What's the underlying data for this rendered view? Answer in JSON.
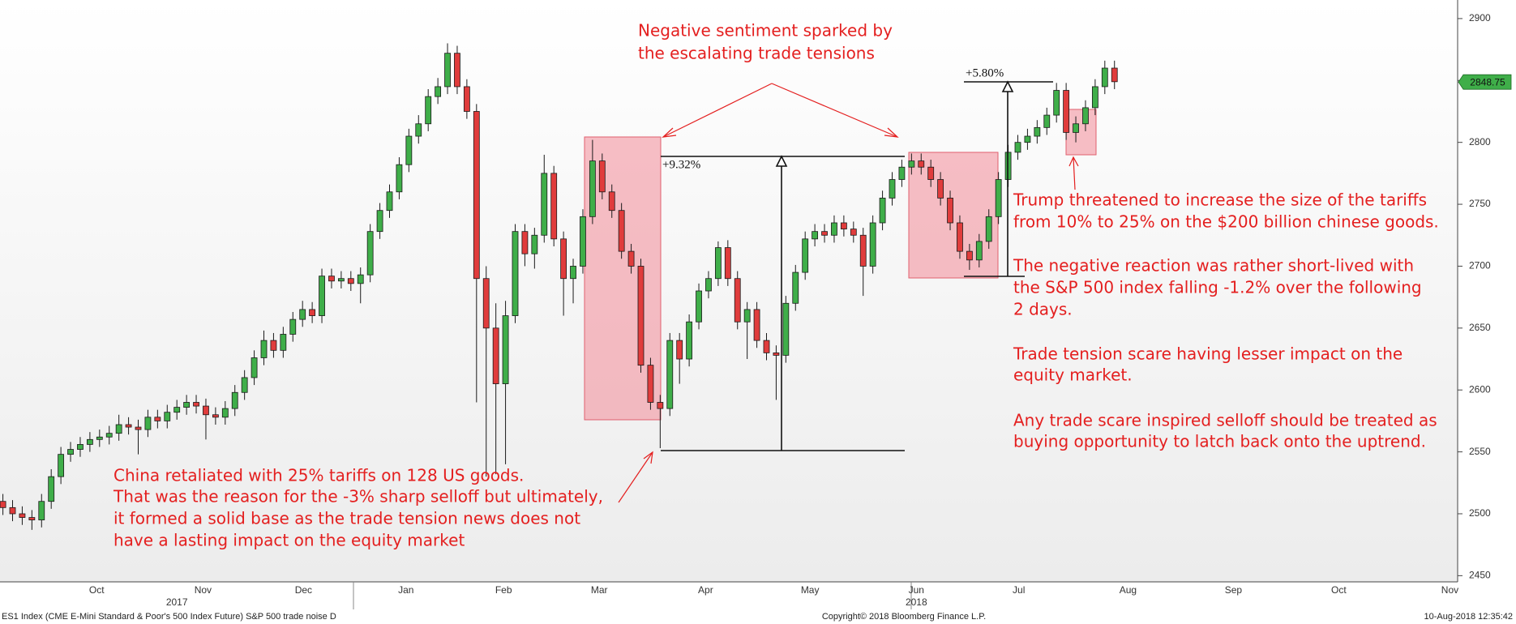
{
  "chart_data": {
    "type": "candlestick",
    "open": [
      2510,
      2505,
      2500,
      2497,
      2495,
      2510,
      2530,
      2548,
      2552,
      2556,
      2560,
      2562,
      2565,
      2572,
      2570,
      2568,
      2578,
      2575,
      2582,
      2586,
      2590,
      2587,
      2580,
      2578,
      2585,
      2598,
      2610,
      2626,
      2640,
      2632,
      2645,
      2657,
      2665,
      2660,
      2692,
      2688,
      2690,
      2686,
      2693,
      2728,
      2745,
      2760,
      2782,
      2805,
      2815,
      2837,
      2845,
      2872,
      2845,
      2825,
      2690,
      2650,
      2605,
      2660,
      2728,
      2710,
      2725,
      2775,
      2722,
      2690,
      2700,
      2740,
      2785,
      2760,
      2745,
      2712,
      2700,
      2620,
      2590,
      2585,
      2640,
      2625,
      2655,
      2680,
      2690,
      2715,
      2690,
      2655,
      2665,
      2640,
      2630,
      2628,
      2670,
      2695,
      2722,
      2728,
      2725,
      2735,
      2730,
      2725,
      2700,
      2735,
      2755,
      2770,
      2780,
      2785,
      2780,
      2770,
      2755,
      2735,
      2712,
      2705,
      2720,
      2740,
      2770,
      2792,
      2800,
      2805,
      2812,
      2822,
      2842,
      2808,
      2815,
      2828,
      2845,
      2860
    ],
    "high": [
      2516,
      2511,
      2506,
      2503,
      2516,
      2536,
      2554,
      2558,
      2562,
      2566,
      2568,
      2571,
      2580,
      2578,
      2576,
      2584,
      2584,
      2588,
      2592,
      2596,
      2596,
      2593,
      2586,
      2591,
      2604,
      2616,
      2632,
      2648,
      2646,
      2651,
      2663,
      2672,
      2671,
      2698,
      2698,
      2696,
      2696,
      2699,
      2734,
      2751,
      2766,
      2788,
      2811,
      2822,
      2843,
      2852,
      2880,
      2878,
      2851,
      2831,
      2700,
      2670,
      2672,
      2734,
      2734,
      2731,
      2790,
      2781,
      2728,
      2706,
      2746,
      2802,
      2791,
      2766,
      2751,
      2718,
      2706,
      2626,
      2596,
      2646,
      2646,
      2661,
      2686,
      2696,
      2720,
      2721,
      2696,
      2671,
      2671,
      2646,
      2636,
      2676,
      2701,
      2728,
      2734,
      2734,
      2741,
      2741,
      2736,
      2731,
      2741,
      2761,
      2776,
      2786,
      2791,
      2791,
      2786,
      2776,
      2761,
      2741,
      2718,
      2726,
      2746,
      2776,
      2798,
      2806,
      2811,
      2818,
      2828,
      2848,
      2848,
      2821,
      2834,
      2851,
      2866,
      2866
    ],
    "low": [
      2499,
      2494,
      2491,
      2487,
      2489,
      2504,
      2524,
      2542,
      2546,
      2550,
      2554,
      2556,
      2559,
      2564,
      2548,
      2562,
      2569,
      2569,
      2576,
      2580,
      2581,
      2560,
      2572,
      2572,
      2579,
      2592,
      2604,
      2620,
      2626,
      2626,
      2639,
      2651,
      2654,
      2654,
      2682,
      2682,
      2680,
      2670,
      2687,
      2722,
      2739,
      2754,
      2776,
      2799,
      2809,
      2831,
      2839,
      2839,
      2819,
      2590,
      2530,
      2532,
      2540,
      2654,
      2700,
      2698,
      2719,
      2716,
      2660,
      2670,
      2694,
      2734,
      2754,
      2739,
      2706,
      2694,
      2614,
      2584,
      2553,
      2579,
      2605,
      2619,
      2649,
      2674,
      2684,
      2684,
      2649,
      2625,
      2634,
      2624,
      2592,
      2622,
      2664,
      2689,
      2716,
      2719,
      2719,
      2724,
      2719,
      2676,
      2694,
      2729,
      2749,
      2764,
      2774,
      2774,
      2764,
      2749,
      2729,
      2706,
      2697,
      2699,
      2714,
      2734,
      2764,
      2786,
      2794,
      2799,
      2806,
      2816,
      2802,
      2800,
      2809,
      2822,
      2839,
      2843
    ],
    "close": [
      2505,
      2500,
      2497,
      2495,
      2510,
      2530,
      2548,
      2552,
      2556,
      2560,
      2562,
      2565,
      2572,
      2570,
      2568,
      2578,
      2575,
      2582,
      2586,
      2590,
      2587,
      2580,
      2578,
      2585,
      2598,
      2610,
      2626,
      2640,
      2632,
      2645,
      2657,
      2665,
      2660,
      2692,
      2688,
      2690,
      2686,
      2693,
      2728,
      2745,
      2760,
      2782,
      2805,
      2815,
      2837,
      2845,
      2872,
      2845,
      2825,
      2690,
      2650,
      2605,
      2660,
      2728,
      2710,
      2725,
      2775,
      2722,
      2690,
      2700,
      2740,
      2785,
      2760,
      2745,
      2712,
      2700,
      2620,
      2590,
      2585,
      2640,
      2625,
      2655,
      2680,
      2690,
      2715,
      2690,
      2655,
      2665,
      2640,
      2630,
      2628,
      2670,
      2695,
      2722,
      2728,
      2725,
      2735,
      2730,
      2725,
      2700,
      2735,
      2755,
      2770,
      2780,
      2785,
      2780,
      2770,
      2755,
      2735,
      2712,
      2705,
      2720,
      2740,
      2770,
      2792,
      2800,
      2805,
      2812,
      2822,
      2842,
      2808,
      2815,
      2828,
      2845,
      2860,
      2849
    ],
    "up_color": "#3fae49",
    "down_color": "#e03c3c",
    "ylim": [
      2445,
      2915
    ],
    "yticks": [
      2450,
      2500,
      2550,
      2600,
      2650,
      2700,
      2750,
      2800,
      2850,
      2900
    ],
    "xlim": [
      -0.3,
      150.5
    ],
    "xticks": [
      {
        "value": 9.7,
        "label": "Oct"
      },
      {
        "value": 20.7,
        "label": "Nov"
      },
      {
        "value": 31.1,
        "label": "Dec"
      },
      {
        "value": 41.7,
        "label": "Jan"
      },
      {
        "value": 51.8,
        "label": "Feb"
      },
      {
        "value": 61.7,
        "label": "Mar"
      },
      {
        "value": 72.7,
        "label": "Apr"
      },
      {
        "value": 83.5,
        "label": "May"
      },
      {
        "value": 94.5,
        "label": "Jun"
      },
      {
        "value": 105.1,
        "label": "Jul"
      },
      {
        "value": 116.4,
        "label": "Aug"
      },
      {
        "value": 127.3,
        "label": "Sep"
      },
      {
        "value": 138.2,
        "label": "Oct"
      },
      {
        "value": 149.7,
        "label": "Nov"
      }
    ],
    "year_labels": [
      {
        "value": 18,
        "label": "2017"
      },
      {
        "value": 94.5,
        "label": "2018"
      }
    ],
    "last_price": 2848.75,
    "last_price_color": "#3fae49",
    "annotations": {
      "top": [
        "Negative sentiment sparked by",
        "the escalating trade tensions"
      ],
      "gain_1": "+9.32%",
      "gain_2": "+5.80%",
      "left": [
        "China retaliated with 25% tariffs on 128 US goods.",
        "That was the reason for the -3% sharp selloff but ultimately,",
        "it formed a solid base as the trade tension news does not",
        "have a lasting impact on the equity market"
      ],
      "right_1": [
        "Trump threatened to increase the size of the tariffs",
        "from 10% to 25% on the $200 billion chinese goods."
      ],
      "right_2": [
        "The negative reaction was rather short-lived with",
        "the S&P 500 index falling -1.2% over the following",
        "2 days."
      ],
      "right_3": [
        "Trade tension scare having lesser impact on the",
        "equity market."
      ],
      "right_4": [
        "Any trade scare inspired selloff should be treated as",
        "buying opportunity to latch back onto the uptrend."
      ]
    },
    "footer": {
      "left": "ES1 Index (CME E-Mini Standard & Poor's 500 Index Future) S&P 500 trade noise  D",
      "center": "Copyright© 2018 Bloomberg Finance L.P.",
      "right": "10-Aug-2018 12:35:42"
    }
  }
}
